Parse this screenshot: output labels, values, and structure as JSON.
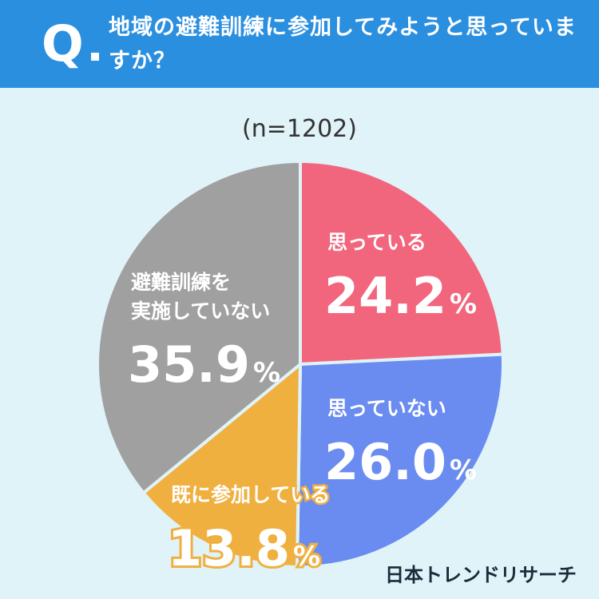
{
  "question": {
    "mark": "Q",
    "text": "地域の避難訓練に参加してみようと思っていますか？"
  },
  "sample_label": "(n=1202)",
  "brand": "日本トレンドリサーチ",
  "colors": {
    "header": "#2b8fe0",
    "background": "#dff3f8",
    "yes": "#f2667d",
    "no": "#6a8cf0",
    "already": "#f0b040",
    "not_held": "#a0a0a0"
  },
  "chart_data": {
    "type": "pie",
    "title": "地域の避難訓練に参加してみようと思っていますか？",
    "slices": [
      {
        "label_lines": [
          "思っている"
        ],
        "value": 24.2,
        "display": "24.2",
        "color": "#f2667d",
        "text_color": "#ffffff",
        "stroke": ""
      },
      {
        "label_lines": [
          "思っていない"
        ],
        "value": 26.0,
        "display": "26.0",
        "color": "#6a8cf0",
        "text_color": "#ffffff",
        "stroke": ""
      },
      {
        "label_lines": [
          "既に参加している"
        ],
        "value": 13.8,
        "display": "13.8",
        "color": "#f0b040",
        "text_color": "#ffffff",
        "stroke": "#f0b040"
      },
      {
        "label_lines": [
          "避難訓練を",
          "実施していない"
        ],
        "value": 35.9,
        "display": "35.9",
        "color": "#a0a0a0",
        "text_color": "#ffffff",
        "stroke": ""
      }
    ],
    "unit": "%"
  }
}
